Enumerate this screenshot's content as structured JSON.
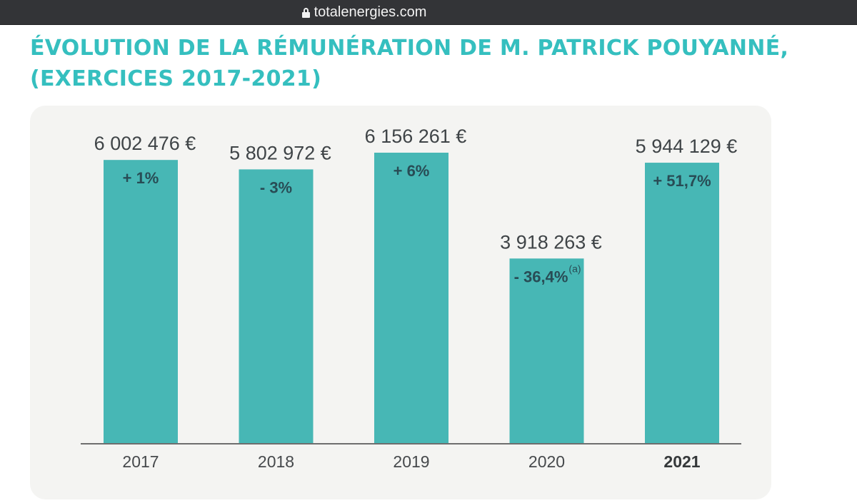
{
  "browser": {
    "url": "totalenergies.com",
    "lock_icon": "lock-icon"
  },
  "title": {
    "line1": "ÉVOLUTION DE LA RÉMUNÉRATION DE M. PATRICK POUYANNÉ,",
    "line2": "(EXERCICES 2017-2021)"
  },
  "colors": {
    "title": "#35bfbf",
    "bar": "#47b7b5",
    "card_background": "#f4f4f2",
    "browser_bar": "#333437"
  },
  "chart_data": {
    "type": "bar",
    "title": "ÉVOLUTION DE LA RÉMUNÉRATION DE M. PATRICK POUYANNÉ, (EXERCICES 2017-2021)",
    "xlabel": "",
    "ylabel": "",
    "unit": "€",
    "ylim": [
      0,
      6156261
    ],
    "grid": false,
    "categories": [
      "2017",
      "2018",
      "2019",
      "2020",
      "2021"
    ],
    "highlighted_category": "2021",
    "values": [
      6002476,
      5802972,
      6156261,
      3918263,
      5944129
    ],
    "value_labels": [
      "6 002 476 €",
      "5 802 972 €",
      "6 156 261 €",
      "3 918 263 €",
      "5 944 129 €"
    ],
    "change_labels": [
      "+ 1%",
      "- 3%",
      "+ 6%",
      "- 36,4%",
      "+ 51,7%"
    ],
    "change_footnotes": [
      "",
      "",
      "",
      "(a)",
      ""
    ]
  }
}
